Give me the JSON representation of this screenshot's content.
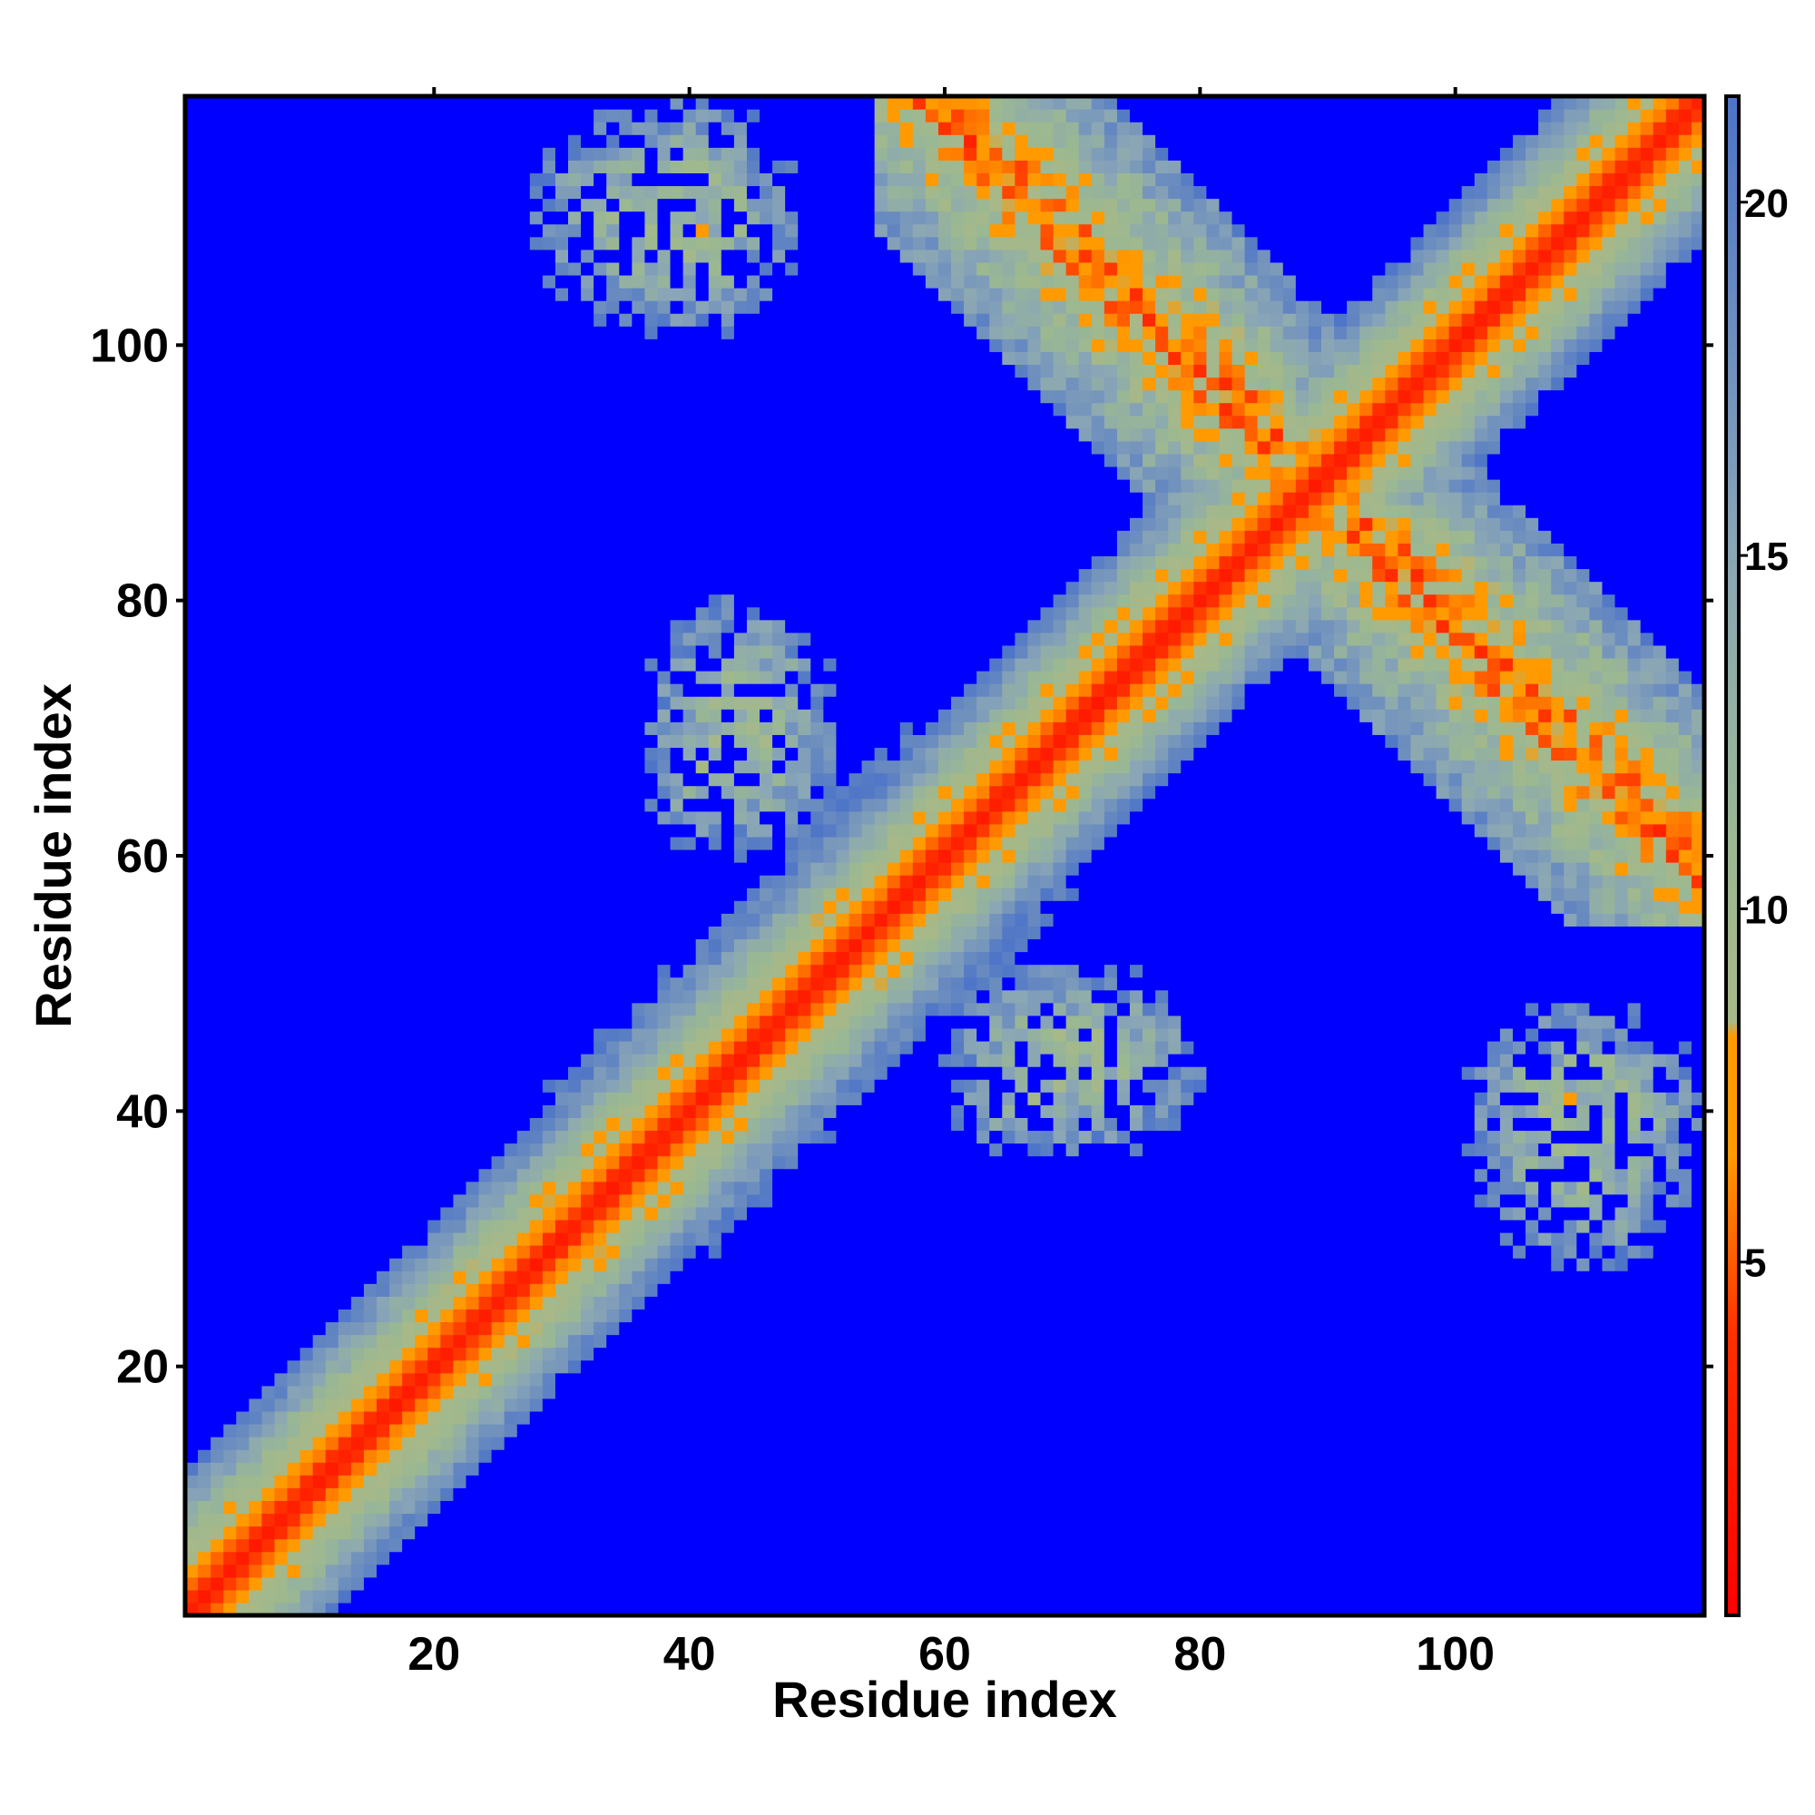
{
  "chart_data": {
    "type": "heatmap",
    "title": "",
    "xlabel": "Residue index",
    "ylabel": "Residue index",
    "n_residues": 119,
    "xlim": [
      1,
      119
    ],
    "ylim": [
      1,
      119
    ],
    "x_ticks": [
      20,
      40,
      60,
      80,
      100
    ],
    "y_ticks": [
      20,
      40,
      60,
      80,
      100
    ],
    "x_tick_labels": [
      "20",
      "40",
      "60",
      "80",
      "100"
    ],
    "y_tick_labels": [
      "20",
      "40",
      "60",
      "80",
      "100"
    ],
    "colorbar": {
      "range": [
        0,
        21.5
      ],
      "ticks": [
        5,
        10,
        15,
        20
      ],
      "tick_labels": [
        "5",
        "10",
        "15",
        "20"
      ],
      "stops": [
        {
          "value": 0,
          "color": "#ff0000"
        },
        {
          "value": 4,
          "color": "#ff3000"
        },
        {
          "value": 6.5,
          "color": "#ff9a00"
        },
        {
          "value": 8.2,
          "color": "#ff9a00"
        },
        {
          "value": 8.4,
          "color": "#a8b888"
        },
        {
          "value": 11,
          "color": "#9ab892"
        },
        {
          "value": 15,
          "color": "#8aa6b6"
        },
        {
          "value": 21.5,
          "color": "#4d74c8"
        }
      ],
      "over_color": "#0000ff"
    },
    "contact_regions": [
      {
        "name": "main diagonal",
        "x_range": [
          1,
          119
        ],
        "y_range": [
          1,
          119
        ]
      },
      {
        "name": "antiparallel strand pairing",
        "x_range": [
          55,
          119
        ],
        "y_range": [
          55,
          119
        ]
      },
      {
        "name": "off-diagonal contacts",
        "x_range": [
          28,
          50
        ],
        "y_range": [
          100,
          119
        ]
      },
      {
        "name": "off-diagonal contacts",
        "x_range": [
          32,
          52
        ],
        "y_range": [
          56,
          80
        ]
      },
      {
        "name": "off-diagonal contacts",
        "x_range": [
          60,
          80
        ],
        "y_range": [
          32,
          50
        ]
      },
      {
        "name": "off-diagonal contacts",
        "x_range": [
          102,
          119
        ],
        "y_range": [
          30,
          50
        ]
      }
    ]
  }
}
